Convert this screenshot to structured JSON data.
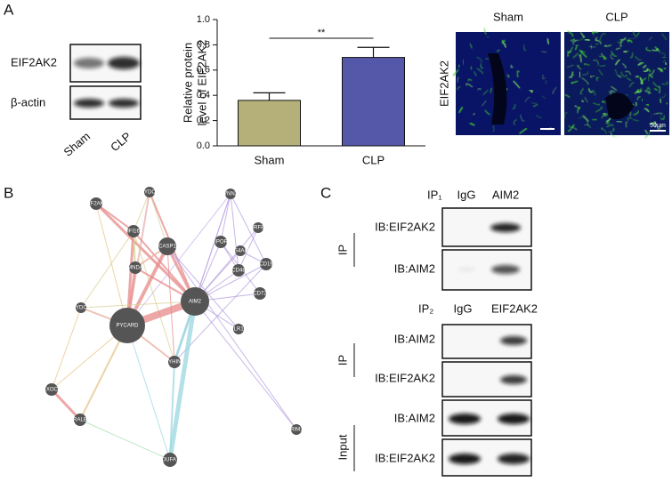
{
  "panels": {
    "a": "A",
    "b": "B",
    "c": "C"
  },
  "blot_a": {
    "rows": [
      "EIF2AK2",
      "β-actin"
    ],
    "lanes": [
      "Sham",
      "CLP"
    ]
  },
  "chart_data": {
    "type": "bar",
    "categories": [
      "Sham",
      "CLP"
    ],
    "values": [
      0.36,
      0.7
    ],
    "errors": [
      0.06,
      0.08
    ],
    "colors": [
      "#b5b07a",
      "#5558a8"
    ],
    "ylabel": [
      "Relative protein",
      "level of EIF2AK2"
    ],
    "ylim": [
      0,
      1
    ],
    "yticks": [
      {
        "value": 0,
        "label": "0.0"
      },
      0.2,
      0.4,
      0.6,
      0.8,
      {
        "value": 1,
        "label": "1.0"
      }
    ],
    "annotation": "**"
  },
  "micrographs": {
    "columns": [
      "Sham",
      "CLP"
    ],
    "row": "EIF2AK2",
    "scale_bar": "50μm"
  },
  "network": {
    "nodes": [
      "EIF2AK2",
      "PYDC1",
      "VNN2",
      "IFI16",
      "CASP1",
      "RIPOR2",
      "IRF8",
      "MS4A4A",
      "CD48",
      "CD19",
      "MNDA",
      "CD72",
      "PYDC2",
      "AIM2",
      "PYCARD",
      "TLR10",
      "PYHIN1",
      "EXOC8",
      "RALB",
      "TRIM11",
      "NDUFA10"
    ]
  },
  "blot_c": {
    "ip1": {
      "title": "IP₁",
      "lanes": [
        "IgG",
        "AIM2"
      ],
      "group": "IP",
      "rows": [
        "IB:EIF2AK2",
        "IB:AIM2"
      ]
    },
    "ip2": {
      "title": "IP₂",
      "lanes": [
        "IgG",
        "EIF2AK2"
      ],
      "group": "IP",
      "rows": [
        "IB:AIM2",
        "IB:EIF2AK2"
      ],
      "input_group": "Input",
      "input_rows": [
        "IB:AIM2",
        "IB:EIF2AK2"
      ]
    }
  }
}
